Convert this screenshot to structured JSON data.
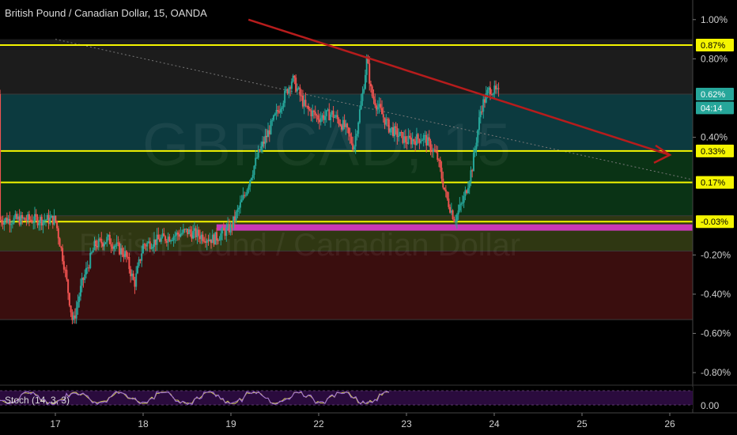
{
  "header": {
    "title": "British Pound / Canadian Dollar, 15, OANDA"
  },
  "watermark": {
    "symbol": "GBPCAD, 15",
    "name": "British Pound / Canadian Dollar"
  },
  "indicator": {
    "label": "Stoch (14, 3, 3)",
    "value": "0.00"
  },
  "price_axis": {
    "ticks": [
      "1.00%",
      "0.80%",
      "0.40%",
      "-0.20%",
      "-0.40%",
      "-0.60%",
      "-0.80%"
    ],
    "badges": [
      {
        "text": "0.87%",
        "value": 0.87,
        "bg": "#f5f500",
        "fg": "#000000"
      },
      {
        "text": "0.62%",
        "value": 0.62,
        "bg": "#26a69a",
        "fg": "#ffffff"
      },
      {
        "text": "04:14",
        "value": 0.55,
        "bg": "#26a69a",
        "fg": "#ffffff"
      },
      {
        "text": "0.33%",
        "value": 0.33,
        "bg": "#f5f500",
        "fg": "#000000"
      },
      {
        "text": "0.17%",
        "value": 0.17,
        "bg": "#f5f500",
        "fg": "#000000"
      },
      {
        "text": "-0.03%",
        "value": -0.03,
        "bg": "#f5f500",
        "fg": "#000000"
      }
    ]
  },
  "time_axis": {
    "ticks": [
      "17",
      "18",
      "19",
      "22",
      "23",
      "24",
      "25",
      "26"
    ]
  },
  "chart_data": {
    "type": "candlestick",
    "title": "British Pound / Canadian Dollar, 15, OANDA",
    "y_unit": "%",
    "ylim": [
      -0.86,
      1.1
    ],
    "x_ticks": [
      "17",
      "18",
      "19",
      "22",
      "23",
      "24",
      "25",
      "26"
    ],
    "price_path": [
      {
        "t": 0,
        "v": -0.02
      },
      {
        "t": 0.1,
        "v": -0.25
      },
      {
        "t": 0.2,
        "v": -0.55
      },
      {
        "t": 0.3,
        "v": -0.35
      },
      {
        "t": 0.45,
        "v": -0.15
      },
      {
        "t": 0.6,
        "v": -0.12
      },
      {
        "t": 0.8,
        "v": -0.2
      },
      {
        "t": 0.9,
        "v": -0.35
      },
      {
        "t": 1.0,
        "v": -0.15
      },
      {
        "t": 1.2,
        "v": -0.12
      },
      {
        "t": 1.5,
        "v": -0.08
      },
      {
        "t": 1.8,
        "v": -0.12
      },
      {
        "t": 2.0,
        "v": -0.06
      },
      {
        "t": 2.15,
        "v": 0.1
      },
      {
        "t": 2.3,
        "v": 0.3
      },
      {
        "t": 2.45,
        "v": 0.45
      },
      {
        "t": 2.55,
        "v": 0.55
      },
      {
        "t": 2.7,
        "v": 0.7
      },
      {
        "t": 2.85,
        "v": 0.55
      },
      {
        "t": 3.0,
        "v": 0.5
      },
      {
        "t": 3.15,
        "v": 0.52
      },
      {
        "t": 3.3,
        "v": 0.45
      },
      {
        "t": 3.4,
        "v": 0.35
      },
      {
        "t": 3.5,
        "v": 0.62
      },
      {
        "t": 3.55,
        "v": 0.8
      },
      {
        "t": 3.6,
        "v": 0.62
      },
      {
        "t": 3.8,
        "v": 0.45
      },
      {
        "t": 4.0,
        "v": 0.38
      },
      {
        "t": 4.2,
        "v": 0.4
      },
      {
        "t": 4.35,
        "v": 0.3
      },
      {
        "t": 4.45,
        "v": 0.1
      },
      {
        "t": 4.55,
        "v": -0.02
      },
      {
        "t": 4.65,
        "v": 0.08
      },
      {
        "t": 4.75,
        "v": 0.25
      },
      {
        "t": 4.85,
        "v": 0.55
      },
      {
        "t": 4.95,
        "v": 0.65
      },
      {
        "t": 5.05,
        "v": 0.62
      }
    ],
    "horizontal_levels": [
      0.87,
      0.33,
      0.17,
      -0.03
    ],
    "zones": [
      {
        "from": 0.9,
        "to": 0.62,
        "color": "#1c1c1c"
      },
      {
        "from": 0.62,
        "to": 0.33,
        "color": "#0c3a3f"
      },
      {
        "from": 0.33,
        "to": 0.0,
        "color": "#0a3315"
      },
      {
        "from": 0.0,
        "to": -0.18,
        "color": "#2f3712"
      },
      {
        "from": -0.18,
        "to": -0.53,
        "color": "#3a0e0e"
      }
    ],
    "trendlines": [
      {
        "from": {
          "t": 2.2,
          "v": 1.0
        },
        "to": {
          "t": 7.0,
          "v": 0.31
        },
        "color": "#b71c1c",
        "arrow": true
      },
      {
        "from": {
          "t": 0.0,
          "v": 0.9
        },
        "to": {
          "t": 7.3,
          "v": 0.18
        },
        "color": "#777777",
        "dotted": true
      }
    ],
    "highlight_band": {
      "from_t": 1.8,
      "to_t": 7.8,
      "value": -0.06,
      "color": "#c838b8"
    },
    "stochastic": {
      "params": [
        14,
        3,
        3
      ],
      "range": [
        0,
        100
      ]
    }
  }
}
